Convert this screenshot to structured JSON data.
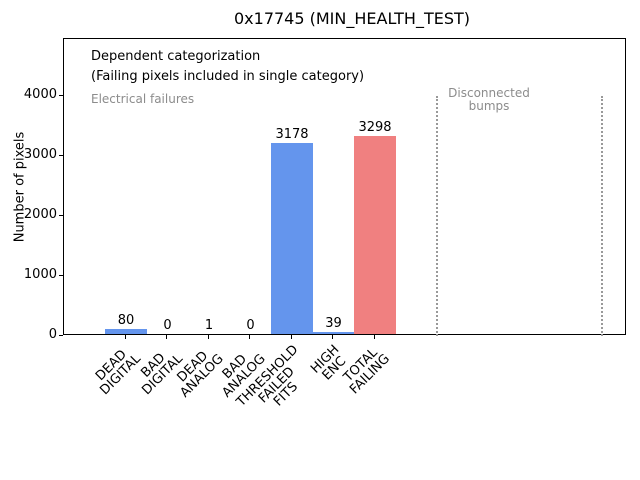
{
  "chart_data": {
    "type": "bar",
    "title": "0x17745 (MIN_HEALTH_TEST)",
    "xlabel": "",
    "ylabel": "Number of pixels",
    "ylim": [
      0,
      4950
    ],
    "yticks": [
      "0",
      "1000",
      "2000",
      "3000",
      "4000"
    ],
    "grid": false,
    "legend": null,
    "categories": [
      "DEAD\nDIGITAL",
      "BAD\nDIGITAL",
      "DEAD\nANALOG",
      "BAD\nANALOG",
      "THRESHOLD\nFAILED\nFITS",
      "HIGH\nENC",
      "TOTAL\nFAILING"
    ],
    "values": [
      80,
      0,
      1,
      0,
      3178,
      39,
      3298
    ],
    "value_labels": [
      "80",
      "0",
      "1",
      "0",
      "3178",
      "39",
      "3298"
    ],
    "bar_colors": [
      "#6495ed",
      "#6495ed",
      "#6495ed",
      "#6495ed",
      "#6495ed",
      "#6495ed",
      "#f08080"
    ],
    "annotations": {
      "dependent_line1": "Dependent categorization",
      "dependent_line2": "(Failing pixels included in single category)",
      "electrical": "Electrical failures",
      "disconnected": "Disconnected\nbumps"
    },
    "colors": {
      "bar_blue": "#6495ed",
      "bar_red": "#f08080",
      "annotation_gray": "#8c8c8c",
      "separator_gray": "#999999",
      "axis_black": "#000000",
      "background": "#ffffff"
    }
  }
}
